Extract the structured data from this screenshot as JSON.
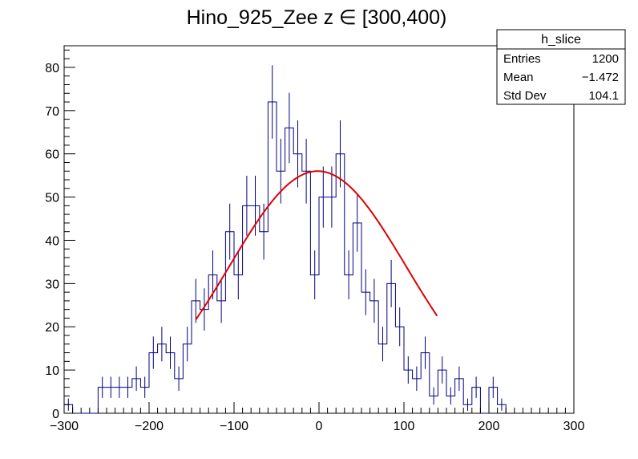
{
  "chart_data": {
    "type": "histogram",
    "title": "Hino_925_Zee z  ∈ [300,400)",
    "xlabel": "",
    "ylabel": "",
    "xlim": [
      -300,
      300
    ],
    "ylim": [
      0,
      85
    ],
    "x_ticks": [
      -300,
      -200,
      -100,
      0,
      100,
      200,
      300
    ],
    "y_ticks": [
      0,
      10,
      20,
      30,
      40,
      50,
      60,
      70,
      80
    ],
    "bin_width": 10,
    "bin_edges_start": -300,
    "counts": [
      2,
      0,
      0,
      0,
      6,
      6,
      6,
      6,
      8,
      6,
      14,
      16,
      14,
      8,
      16,
      26,
      24,
      32,
      26,
      42,
      32,
      48,
      48,
      42,
      72,
      56,
      66,
      60,
      56,
      32,
      50,
      50,
      60,
      32,
      44,
      28,
      26,
      16,
      30,
      20,
      10,
      8,
      14,
      4,
      10,
      4,
      8,
      2,
      6,
      0,
      6,
      2
    ],
    "errors": "sqrt",
    "series": [
      {
        "name": "h_slice",
        "style": "histogram",
        "color": "#000080"
      },
      {
        "name": "fit",
        "style": "gaussian-curve",
        "color": "#e00000",
        "amplitude": 56,
        "mean": -1.5,
        "sigma": 104.1,
        "range": [
          -145,
          140
        ]
      }
    ],
    "stats_box": {
      "title": "h_slice",
      "rows": [
        {
          "label": "Entries",
          "value": "1200"
        },
        {
          "label": "Mean",
          "value": "−1.472"
        },
        {
          "label": "Std Dev",
          "value": "104.1"
        }
      ]
    }
  }
}
